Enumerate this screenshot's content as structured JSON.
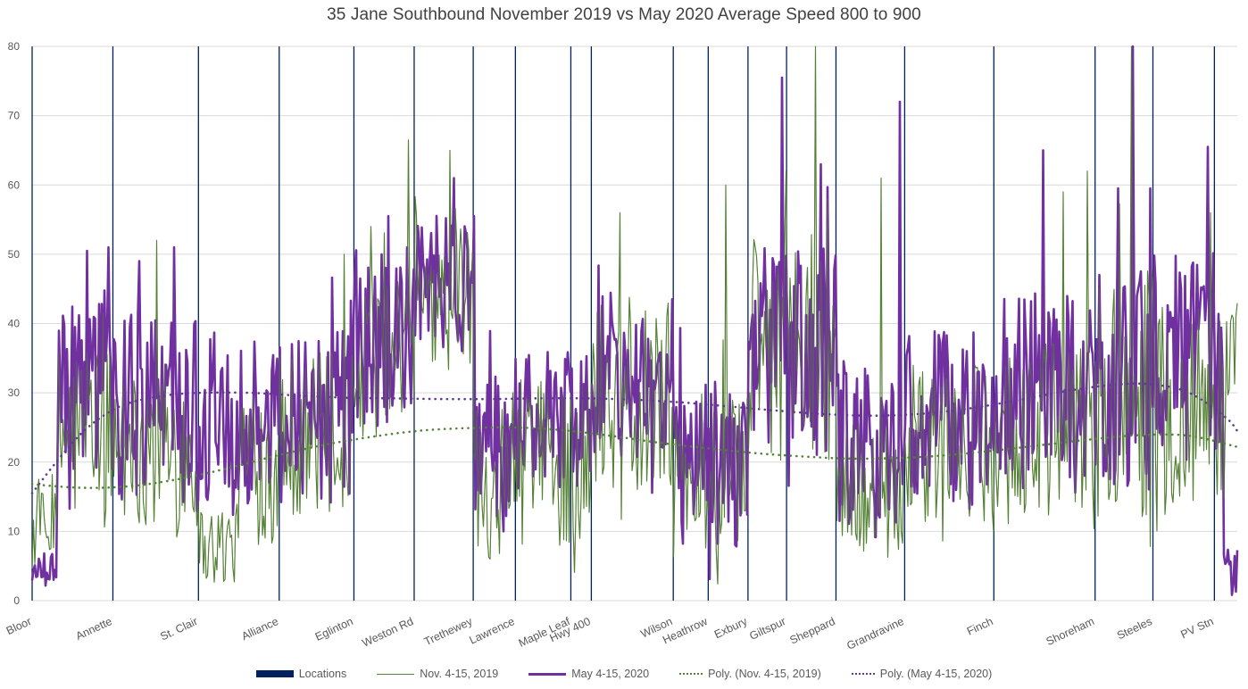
{
  "chart_data": {
    "type": "line",
    "title": "35 Jane Southbound November 2019 vs May 2020 Average Speed 800 to 900",
    "xlabel": "",
    "ylabel": "",
    "ylim": [
      0,
      80
    ],
    "yticks": [
      0,
      10,
      20,
      30,
      40,
      50,
      60,
      70,
      80
    ],
    "grid": true,
    "legend_position": "bottom",
    "x_domain": [
      0,
      1000
    ],
    "locations": [
      {
        "name": "Bloor",
        "x": 0
      },
      {
        "name": "Annette",
        "x": 67
      },
      {
        "name": "St. Clair",
        "x": 138
      },
      {
        "name": "Alliance",
        "x": 205
      },
      {
        "name": "Eglinton",
        "x": 267
      },
      {
        "name": "Weston Rd",
        "x": 317
      },
      {
        "name": "Trethewey",
        "x": 366
      },
      {
        "name": "Lawrence",
        "x": 401
      },
      {
        "name": "Maple Leaf",
        "x": 447
      },
      {
        "name": "Hwy 400",
        "x": 464
      },
      {
        "name": "Wilson",
        "x": 532
      },
      {
        "name": "Heathrow",
        "x": 561
      },
      {
        "name": "Exbury",
        "x": 594
      },
      {
        "name": "Giltspur",
        "x": 626
      },
      {
        "name": "Sheppard",
        "x": 667
      },
      {
        "name": "Grandravine",
        "x": 724
      },
      {
        "name": "Finch",
        "x": 798
      },
      {
        "name": "Shoreham",
        "x": 882
      },
      {
        "name": "Steeles",
        "x": 930
      },
      {
        "name": "PV Stn",
        "x": 981
      }
    ],
    "series": [
      {
        "name": "Nov. 4-15, 2019",
        "color": "#548235",
        "style": "thin",
        "segment_profile": [
          {
            "from": 0,
            "to": 20,
            "mean": 10,
            "amp": 6
          },
          {
            "from": 20,
            "to": 67,
            "mean": 24,
            "amp": 14
          },
          {
            "from": 67,
            "to": 138,
            "mean": 22,
            "amp": 13
          },
          {
            "from": 138,
            "to": 170,
            "mean": 8,
            "amp": 6
          },
          {
            "from": 170,
            "to": 205,
            "mean": 20,
            "amp": 12
          },
          {
            "from": 205,
            "to": 267,
            "mean": 24,
            "amp": 12
          },
          {
            "from": 267,
            "to": 317,
            "mean": 35,
            "amp": 12
          },
          {
            "from": 317,
            "to": 366,
            "mean": 44,
            "amp": 13
          },
          {
            "from": 366,
            "to": 401,
            "mean": 18,
            "amp": 12
          },
          {
            "from": 401,
            "to": 464,
            "mean": 20,
            "amp": 12
          },
          {
            "from": 464,
            "to": 532,
            "mean": 30,
            "amp": 14
          },
          {
            "from": 532,
            "to": 594,
            "mean": 18,
            "amp": 12
          },
          {
            "from": 594,
            "to": 667,
            "mean": 36,
            "amp": 16
          },
          {
            "from": 667,
            "to": 724,
            "mean": 16,
            "amp": 10
          },
          {
            "from": 724,
            "to": 798,
            "mean": 22,
            "amp": 12
          },
          {
            "from": 798,
            "to": 882,
            "mean": 24,
            "amp": 14
          },
          {
            "from": 882,
            "to": 930,
            "mean": 30,
            "amp": 18
          },
          {
            "from": 930,
            "to": 1000,
            "mean": 28,
            "amp": 16
          }
        ],
        "peaks": [
          [
            103,
            52
          ],
          [
            259,
            50
          ],
          [
            281,
            54
          ],
          [
            312,
            66.5
          ],
          [
            347,
            65
          ],
          [
            488,
            56
          ],
          [
            576,
            60
          ],
          [
            626,
            62
          ],
          [
            650,
            80
          ],
          [
            660,
            58
          ],
          [
            704,
            61
          ],
          [
            855,
            59
          ],
          [
            875,
            62
          ],
          [
            912,
            80
          ],
          [
            978,
            56
          ]
        ]
      },
      {
        "name": "May 4-15, 2020",
        "color": "#7030a0",
        "style": "thick",
        "segment_profile": [
          {
            "from": 0,
            "to": 20,
            "mean": 4,
            "amp": 3
          },
          {
            "from": 20,
            "to": 67,
            "mean": 32,
            "amp": 13
          },
          {
            "from": 67,
            "to": 138,
            "mean": 28,
            "amp": 14
          },
          {
            "from": 138,
            "to": 205,
            "mean": 26,
            "amp": 12
          },
          {
            "from": 205,
            "to": 267,
            "mean": 27,
            "amp": 13
          },
          {
            "from": 267,
            "to": 317,
            "mean": 38,
            "amp": 13
          },
          {
            "from": 317,
            "to": 366,
            "mean": 46,
            "amp": 10
          },
          {
            "from": 366,
            "to": 401,
            "mean": 22,
            "amp": 12
          },
          {
            "from": 401,
            "to": 464,
            "mean": 26,
            "amp": 10
          },
          {
            "from": 464,
            "to": 532,
            "mean": 32,
            "amp": 12
          },
          {
            "from": 532,
            "to": 594,
            "mean": 20,
            "amp": 12
          },
          {
            "from": 594,
            "to": 667,
            "mean": 36,
            "amp": 15
          },
          {
            "from": 667,
            "to": 724,
            "mean": 22,
            "amp": 13
          },
          {
            "from": 724,
            "to": 798,
            "mean": 26,
            "amp": 13
          },
          {
            "from": 798,
            "to": 882,
            "mean": 30,
            "amp": 15
          },
          {
            "from": 882,
            "to": 930,
            "mean": 32,
            "amp": 16
          },
          {
            "from": 930,
            "to": 988,
            "mean": 36,
            "amp": 16
          },
          {
            "from": 988,
            "to": 1000,
            "mean": 4,
            "amp": 4
          }
        ],
        "peaks": [
          [
            46,
            50.5
          ],
          [
            63,
            51
          ],
          [
            89,
            49
          ],
          [
            118,
            51
          ],
          [
            296,
            55.5
          ],
          [
            350,
            61
          ],
          [
            367,
            55.5
          ],
          [
            622,
            75.5
          ],
          [
            654,
            63
          ],
          [
            720,
            72
          ],
          [
            839,
            65
          ],
          [
            901,
            59.5
          ],
          [
            913,
            80
          ],
          [
            928,
            59.5
          ],
          [
            976,
            65.5
          ]
        ]
      }
    ],
    "trendlines": [
      {
        "name": "Poly. (Nov. 4-15, 2019)",
        "color": "#548235",
        "style": "dotted",
        "points": [
          [
            0,
            16.8
          ],
          [
            40,
            16.3
          ],
          [
            80,
            16.5
          ],
          [
            120,
            17.5
          ],
          [
            160,
            19.0
          ],
          [
            200,
            20.8
          ],
          [
            240,
            22.4
          ],
          [
            280,
            23.6
          ],
          [
            320,
            24.5
          ],
          [
            360,
            24.9
          ],
          [
            400,
            25.0
          ],
          [
            440,
            24.6
          ],
          [
            480,
            23.8
          ],
          [
            520,
            22.8
          ],
          [
            560,
            22.0
          ],
          [
            600,
            21.3
          ],
          [
            640,
            20.8
          ],
          [
            680,
            20.5
          ],
          [
            720,
            20.6
          ],
          [
            760,
            21.0
          ],
          [
            800,
            21.7
          ],
          [
            840,
            22.5
          ],
          [
            880,
            23.3
          ],
          [
            920,
            23.9
          ],
          [
            960,
            23.8
          ],
          [
            1000,
            22.2
          ]
        ]
      },
      {
        "name": "Poly. (May 4-15, 2020)",
        "color": "#5f3b8f",
        "style": "dotted",
        "points": [
          [
            0,
            15.5
          ],
          [
            20,
            20.0
          ],
          [
            40,
            24.0
          ],
          [
            60,
            26.8
          ],
          [
            80,
            28.5
          ],
          [
            110,
            29.6
          ],
          [
            140,
            30.0
          ],
          [
            180,
            30.0
          ],
          [
            220,
            29.6
          ],
          [
            260,
            29.3
          ],
          [
            300,
            29.2
          ],
          [
            340,
            29.1
          ],
          [
            380,
            29.1
          ],
          [
            420,
            29.2
          ],
          [
            460,
            29.2
          ],
          [
            500,
            29.0
          ],
          [
            540,
            28.6
          ],
          [
            580,
            28.0
          ],
          [
            620,
            27.4
          ],
          [
            660,
            26.9
          ],
          [
            700,
            26.7
          ],
          [
            740,
            27.0
          ],
          [
            780,
            27.8
          ],
          [
            820,
            29.0
          ],
          [
            860,
            30.3
          ],
          [
            900,
            31.2
          ],
          [
            930,
            31.2
          ],
          [
            960,
            30.0
          ],
          [
            990,
            26.5
          ],
          [
            1000,
            24.5
          ]
        ]
      }
    ],
    "legend": [
      {
        "label": "Locations",
        "kind": "locations"
      },
      {
        "label": "Nov. 4-15, 2019",
        "kind": "nov"
      },
      {
        "label": "May 4-15, 2020",
        "kind": "may"
      },
      {
        "label": "Poly. (Nov. 4-15, 2019)",
        "kind": "pnov"
      },
      {
        "label": "Poly. (May 4-15, 2020)",
        "kind": "pmay"
      }
    ],
    "location_line_color": "#002060"
  }
}
